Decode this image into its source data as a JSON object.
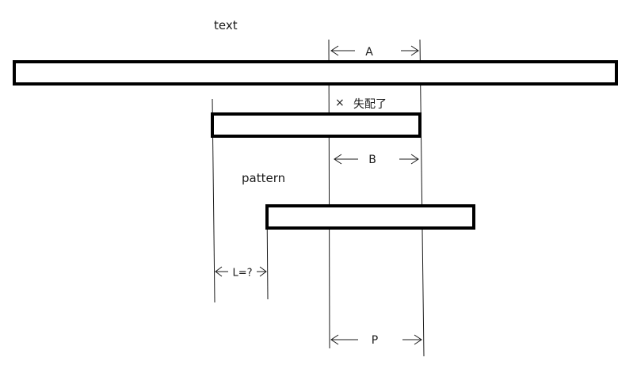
{
  "labels": {
    "text": "text",
    "pattern": "pattern",
    "mismatch_mark": "×",
    "mismatch_text": "失配了",
    "dim_a": "A",
    "dim_b": "B",
    "dim_l": "L=?",
    "dim_p": "P"
  }
}
